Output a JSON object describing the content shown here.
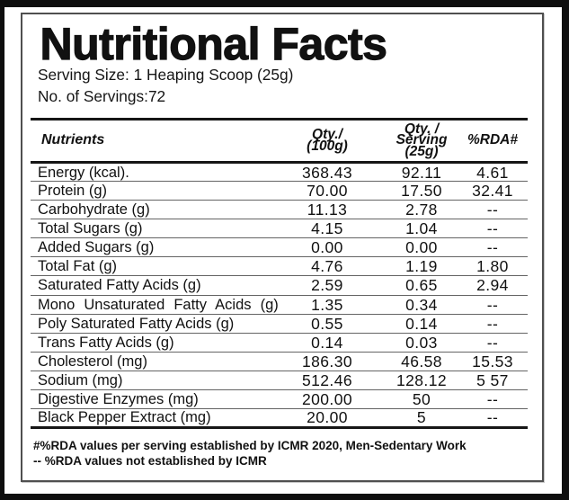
{
  "title": "Nutritional Facts",
  "serving_size": "Serving Size: 1 Heaping Scoop (25g)",
  "servings_count": "No. of Servings:72",
  "table": {
    "headers": {
      "nutrients": "Nutrients",
      "qty_100g": "Qty./\n(100g)",
      "qty_serving": "Qty. /\nServing\n(25g)",
      "rda": "%RDA#"
    },
    "rows": [
      {
        "nutrient": "Energy (kcal).",
        "qty_100g": "368.43",
        "qty_serving": "92.11",
        "rda": "4.61"
      },
      {
        "nutrient": "Protein (g)",
        "qty_100g": "70.00",
        "qty_serving": "17.50",
        "rda": "32.41"
      },
      {
        "nutrient": "Carbohydrate (g)",
        "qty_100g": "11.13",
        "qty_serving": "2.78",
        "rda": "--"
      },
      {
        "nutrient": "Total Sugars (g)",
        "qty_100g": "4.15",
        "qty_serving": "1.04",
        "rda": "--"
      },
      {
        "nutrient": "Added Sugars (g)",
        "qty_100g": "0.00",
        "qty_serving": "0.00",
        "rda": "--"
      },
      {
        "nutrient": "Total Fat (g)",
        "qty_100g": "4.76",
        "qty_serving": "1.19",
        "rda": "1.80"
      },
      {
        "nutrient": "Saturated Fatty Acids (g)",
        "qty_100g": "2.59",
        "qty_serving": "0.65",
        "rda": "2.94"
      },
      {
        "nutrient": "Mono Unsaturated Fatty Acids (g)",
        "qty_100g": "1.35",
        "qty_serving": "0.34",
        "rda": "--"
      },
      {
        "nutrient": "Poly Saturated Fatty Acids (g)",
        "qty_100g": "0.55",
        "qty_serving": "0.14",
        "rda": "--"
      },
      {
        "nutrient": "Trans Fatty Acids (g)",
        "qty_100g": "0.14",
        "qty_serving": "0.03",
        "rda": "--"
      },
      {
        "nutrient": "Cholesterol (mg)",
        "qty_100g": "186.30",
        "qty_serving": "46.58",
        "rda": "15.53"
      },
      {
        "nutrient": "Sodium (mg)",
        "qty_100g": "512.46",
        "qty_serving": "128.12",
        "rda": "5 57"
      },
      {
        "nutrient": "Digestive Enzymes (mg)",
        "qty_100g": "200.00",
        "qty_serving": "50",
        "rda": "--"
      },
      {
        "nutrient": "Black Pepper Extract (mg)",
        "qty_100g": "20.00",
        "qty_serving": "5",
        "rda": "--"
      }
    ]
  },
  "notes": {
    "line1": "#%RDA values per serving established by ICMR 2020, Men-Sedentary Work",
    "line2": "-- %RDA values not established by ICMR"
  }
}
